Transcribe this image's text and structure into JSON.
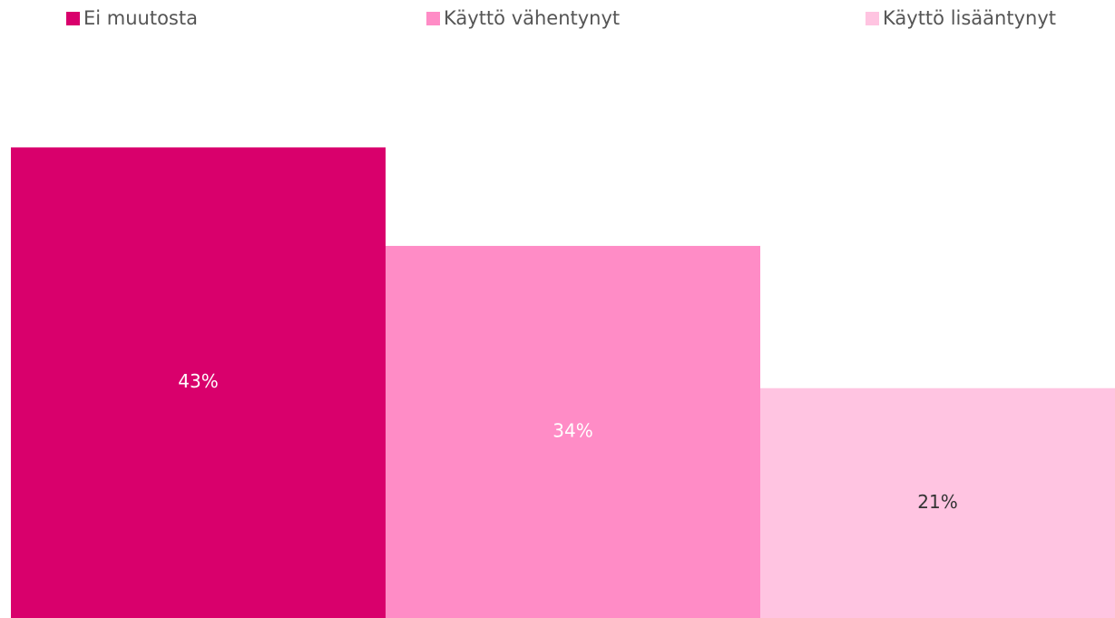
{
  "chart_data": {
    "type": "bar",
    "categories": [
      "Ei muutosta",
      "Käyttö vähentynyt",
      "Käyttö lisääntynyt"
    ],
    "values": [
      43,
      34,
      21
    ],
    "value_labels": [
      "43%",
      "34%",
      "21%"
    ],
    "colors": [
      "#d9006c",
      "#ff8cc6",
      "#ffc4e1"
    ],
    "label_colors": [
      "#ffffff",
      "#ffffff",
      "#333333"
    ],
    "ylim": [
      0,
      50
    ]
  }
}
